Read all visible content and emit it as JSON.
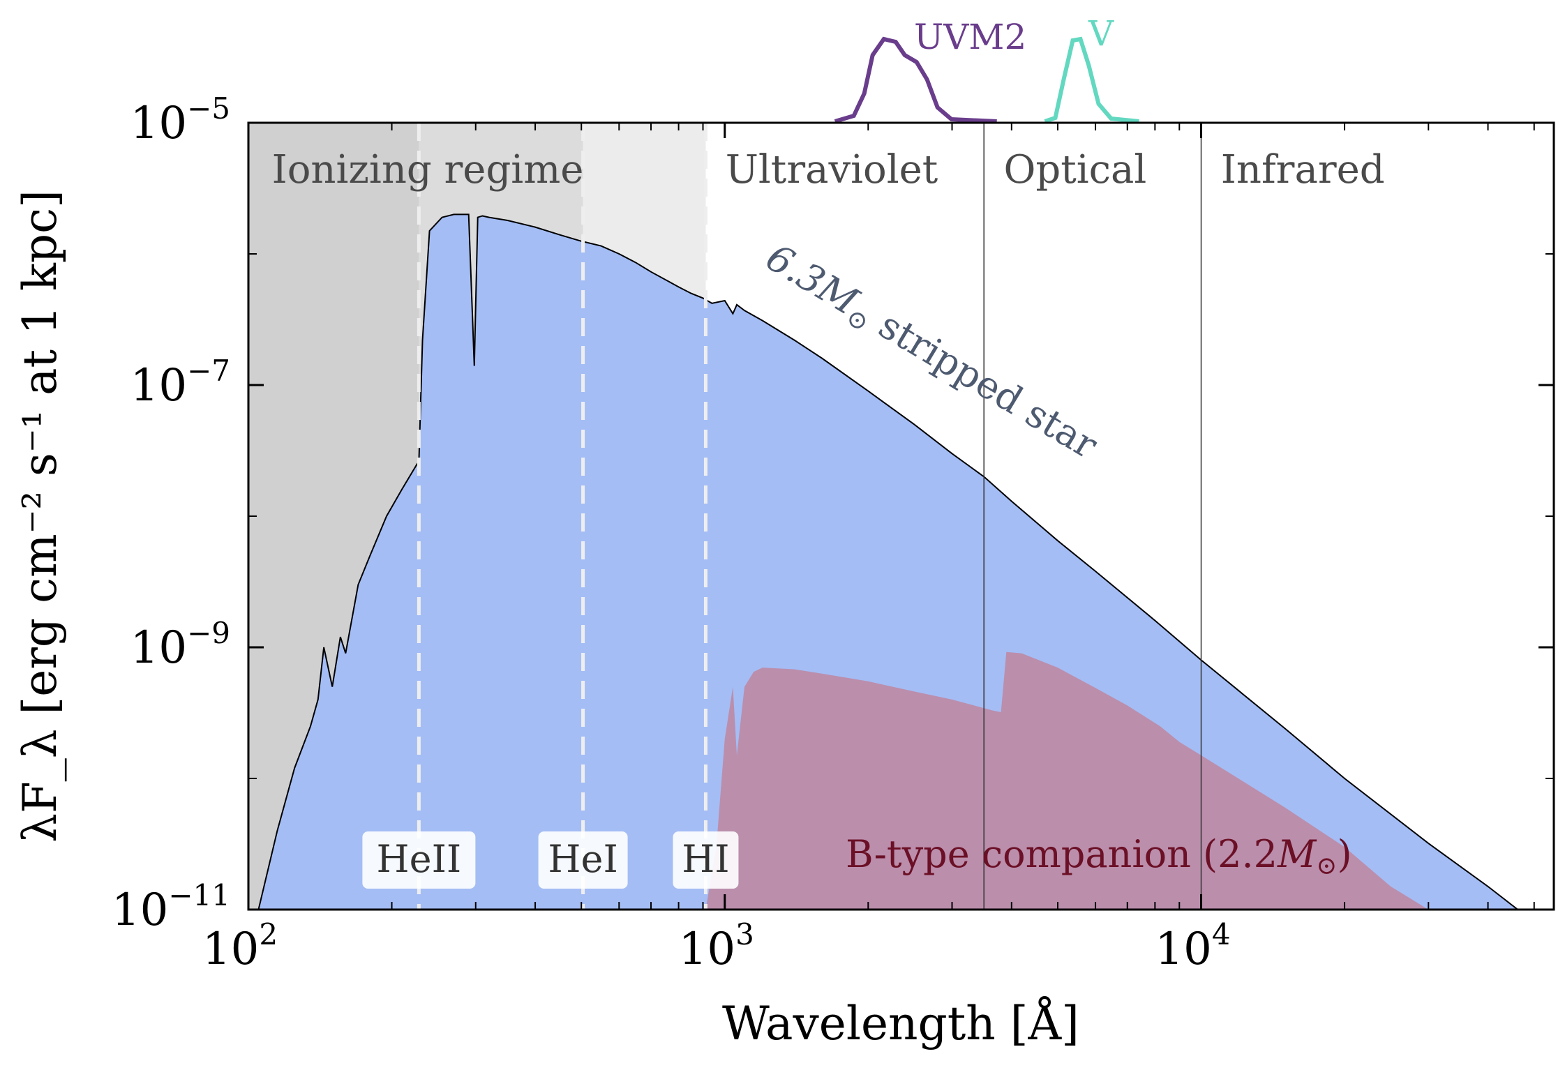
{
  "chart_data": {
    "type": "area",
    "xscale": "log",
    "yscale": "log",
    "xlim": [
      100,
      55000
    ],
    "ylim": [
      1e-11,
      1e-05
    ],
    "xlabel": "Wavelength [Å]",
    "ylabel": "λF_λ [erg cm⁻² s⁻¹ at 1 kpc]",
    "x_ticks": [
      {
        "value": 100,
        "base": "10",
        "exp": "2"
      },
      {
        "value": 1000,
        "base": "10",
        "exp": "3"
      },
      {
        "value": 10000,
        "base": "10",
        "exp": "4"
      }
    ],
    "y_ticks": [
      {
        "value": 1e-05,
        "base": "10",
        "exp": "−5"
      },
      {
        "value": 1e-07,
        "base": "10",
        "exp": "−7"
      },
      {
        "value": 1e-09,
        "base": "10",
        "exp": "−9"
      },
      {
        "value": 1e-11,
        "base": "10",
        "exp": "−11"
      }
    ],
    "regions": [
      {
        "name": "Ionizing regime",
        "from": 100,
        "to": 912
      },
      {
        "name": "Ultraviolet",
        "from": 912,
        "to": 3500
      },
      {
        "name": "Optical",
        "from": 3500,
        "to": 10000
      },
      {
        "name": "Infrared",
        "from": 10000,
        "to": 55000
      }
    ],
    "ionization_edges": [
      {
        "label": "HeII",
        "wavelength": 228
      },
      {
        "label": "HeI",
        "wavelength": 504
      },
      {
        "label": "HI",
        "wavelength": 912
      }
    ],
    "series": [
      {
        "name": "6.3M☉ stripped star",
        "label_prefix": "6.3",
        "label_symbol": "M",
        "label_sub": "⊙",
        "label_suffix": " stripped star",
        "color": "#a4bdf5",
        "x": [
          105,
          115,
          125,
          135,
          140,
          144,
          150,
          156,
          160,
          170,
          180,
          195,
          210,
          226,
          228,
          232,
          240,
          255,
          270,
          290,
          298,
          303,
          310,
          320,
          350,
          400,
          450,
          500,
          550,
          600,
          650,
          700,
          760,
          800,
          850,
          900,
          940,
          1000,
          1040,
          1060,
          1100,
          1200,
          1400,
          1600,
          2000,
          2500,
          3000,
          3500,
          4000,
          5000,
          6000,
          8000,
          10000,
          15000,
          20000,
          30000,
          40000,
          50000
        ],
        "y": [
          1e-11,
          4e-11,
          1.2e-10,
          2.5e-10,
          4e-10,
          1e-09,
          5e-10,
          1.2e-09,
          9e-10,
          3e-09,
          5e-09,
          1e-08,
          1.6e-08,
          2.5e-08,
          2.6e-08,
          2.2e-07,
          1.5e-06,
          1.9e-06,
          2e-06,
          2e-06,
          1.4e-07,
          1.9e-06,
          1.95e-06,
          1.9e-06,
          1.8e-06,
          1.6e-06,
          1.4e-06,
          1.25e-06,
          1.15e-06,
          1e-06,
          8.6e-07,
          7.3e-07,
          6.2e-07,
          5.6e-07,
          5e-07,
          4.6e-07,
          4.2e-07,
          4.4e-07,
          3.5e-07,
          4.1e-07,
          3.7e-07,
          3.1e-07,
          2.2e-07,
          1.6e-07,
          9e-08,
          5e-08,
          3e-08,
          2e-08,
          1.3e-08,
          6.5e-09,
          3.8e-09,
          1.6e-09,
          8e-10,
          2.4e-10,
          1e-10,
          3.2e-11,
          1.5e-11,
          8e-12
        ]
      },
      {
        "name": "B-type companion (2.2M☉)",
        "label_prefix": "B-type companion (2.2",
        "label_symbol": "M",
        "label_sub": "⊙",
        "label_suffix": ")",
        "color": "#c0869f",
        "x": [
          912,
          960,
          1000,
          1040,
          1060,
          1100,
          1150,
          1200,
          1400,
          1600,
          2000,
          2500,
          3000,
          3646,
          3800,
          3900,
          4200,
          5000,
          6000,
          7000,
          8200,
          9000,
          10000,
          15000,
          20000,
          25000,
          30000
        ],
        "y": [
          1e-11,
          3e-11,
          2e-10,
          5e-10,
          1.5e-10,
          5e-10,
          6.5e-10,
          7e-10,
          6.8e-10,
          6.3e-10,
          5.5e-10,
          4.6e-10,
          4e-10,
          3.3e-10,
          3.2e-10,
          9.2e-10,
          9e-10,
          7e-10,
          4.9e-10,
          3.6e-10,
          2.5e-10,
          1.9e-10,
          1.5e-10,
          6e-11,
          3e-11,
          1.5e-11,
          1e-11
        ]
      }
    ],
    "filters": [
      {
        "name": "UVM2",
        "center": 2246,
        "color": "#6a3d8c"
      },
      {
        "name": "V",
        "center": 5468,
        "color": "#62d8c0"
      }
    ]
  }
}
